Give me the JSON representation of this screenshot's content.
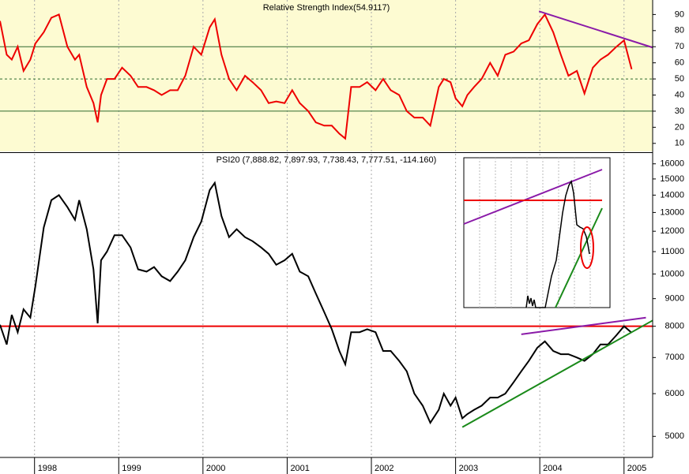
{
  "chart_data": [
    {
      "type": "line",
      "title": "Relative Strength Index(54.9117)",
      "color": "#ee0000",
      "background": "#fdfbd2",
      "x": [
        1997.59,
        1997.67,
        1997.73,
        1997.8,
        1997.87,
        1997.95,
        1998.01,
        1998.11,
        1998.2,
        1998.29,
        1998.39,
        1998.48,
        1998.53,
        1998.62,
        1998.7,
        1998.75,
        1998.79,
        1998.86,
        1998.95,
        1999.04,
        1999.14,
        1999.23,
        1999.33,
        1999.42,
        1999.51,
        1999.61,
        1999.7,
        1999.79,
        1999.89,
        1999.98,
        2000.08,
        2000.14,
        2000.22,
        2000.31,
        2000.4,
        2000.5,
        2000.59,
        2000.69,
        2000.78,
        2000.87,
        2000.97,
        2001.06,
        2001.15,
        2001.25,
        2001.34,
        2001.44,
        2001.53,
        2001.62,
        2001.69,
        2001.76,
        2001.86,
        2001.95,
        2002.05,
        2002.14,
        2002.23,
        2002.33,
        2002.42,
        2002.51,
        2002.61,
        2002.7,
        2002.8,
        2002.86,
        2002.94,
        2003.0,
        2003.08,
        2003.14,
        2003.22,
        2003.31,
        2003.41,
        2003.5,
        2003.59,
        2003.69,
        2003.78,
        2003.87,
        2003.97,
        2004.06,
        2004.16,
        2004.25,
        2004.34,
        2004.44,
        2004.53,
        2004.63,
        2004.72,
        2004.81,
        2004.91,
        2005.0,
        2005.09
      ],
      "values": [
        86,
        65,
        62,
        70,
        55,
        62,
        72,
        79,
        88,
        90,
        70,
        62,
        65,
        45,
        35,
        23,
        40,
        50,
        50,
        57,
        52,
        45,
        45,
        43,
        40,
        43,
        43,
        52,
        70,
        65,
        82,
        87,
        65,
        50,
        43,
        52,
        48,
        43,
        35,
        36,
        35,
        43,
        35,
        30,
        23,
        21,
        21,
        16,
        13,
        45,
        45,
        48,
        43,
        50,
        43,
        40,
        30,
        26,
        26,
        21,
        45,
        50,
        48,
        38,
        33,
        40,
        45,
        50,
        60,
        52,
        65,
        67,
        72,
        74,
        84,
        90,
        79,
        65,
        52,
        55,
        41,
        57,
        62,
        65,
        70,
        74,
        56
      ],
      "xlim": [
        1997.59,
        2005.34
      ],
      "xticks": [
        1998,
        1999,
        2000,
        2001,
        2002,
        2003,
        2004,
        2005
      ],
      "ylim": [
        5,
        99
      ],
      "yticks": [
        10,
        20,
        30,
        40,
        50,
        60,
        70,
        80,
        90
      ],
      "hlines": [
        {
          "value": 70,
          "color": "#2e6b2e",
          "style": "solid"
        },
        {
          "value": 50,
          "color": "#2e6b2e",
          "style": "dashed"
        },
        {
          "value": 30,
          "color": "#2e6b2e",
          "style": "solid"
        }
      ],
      "trendlines": [
        {
          "color": "#8a1aa8",
          "x": [
            2003.99,
            2005.34
          ],
          "values": [
            92,
            69.5
          ]
        }
      ]
    },
    {
      "type": "line",
      "title": "PSI20 (7,888.82, 7,897.93, 7,738.43, 7,777.51, -114.160)",
      "color": "#000000",
      "background": "#ffffff",
      "log": true,
      "x": [
        1997.59,
        1997.67,
        1997.73,
        1997.8,
        1997.87,
        1997.95,
        1998.01,
        1998.11,
        1998.2,
        1998.29,
        1998.39,
        1998.48,
        1998.53,
        1998.62,
        1998.7,
        1998.75,
        1998.79,
        1998.86,
        1998.95,
        1999.04,
        1999.14,
        1999.23,
        1999.33,
        1999.42,
        1999.51,
        1999.61,
        1999.7,
        1999.79,
        1999.89,
        1999.98,
        2000.08,
        2000.14,
        2000.22,
        2000.31,
        2000.4,
        2000.5,
        2000.59,
        2000.69,
        2000.78,
        2000.87,
        2000.97,
        2001.06,
        2001.15,
        2001.25,
        2001.34,
        2001.44,
        2001.53,
        2001.62,
        2001.69,
        2001.76,
        2001.86,
        2001.95,
        2002.05,
        2002.14,
        2002.23,
        2002.33,
        2002.42,
        2002.51,
        2002.61,
        2002.7,
        2002.8,
        2002.86,
        2002.94,
        2003.0,
        2003.08,
        2003.14,
        2003.22,
        2003.31,
        2003.41,
        2003.5,
        2003.59,
        2003.69,
        2003.78,
        2003.87,
        2003.97,
        2004.06,
        2004.16,
        2004.25,
        2004.34,
        2004.44,
        2004.53,
        2004.63,
        2004.72,
        2004.81,
        2004.91,
        2005.0,
        2005.09
      ],
      "values": [
        8050,
        7400,
        8400,
        7800,
        8600,
        8300,
        9500,
        12200,
        13700,
        14000,
        13300,
        12600,
        13700,
        12100,
        10200,
        8100,
        10600,
        11000,
        11800,
        11800,
        11200,
        10200,
        10100,
        10300,
        9900,
        9700,
        10100,
        10600,
        11700,
        12500,
        14300,
        14750,
        12800,
        11700,
        12100,
        11700,
        11500,
        11200,
        10900,
        10400,
        10600,
        10900,
        10100,
        9900,
        9200,
        8500,
        7900,
        7200,
        6800,
        7800,
        7800,
        7900,
        7800,
        7200,
        7200,
        6900,
        6600,
        6000,
        5700,
        5300,
        5600,
        6000,
        5700,
        5900,
        5400,
        5500,
        5600,
        5700,
        5900,
        5900,
        6000,
        6300,
        6600,
        6900,
        7300,
        7500,
        7200,
        7100,
        7100,
        7000,
        6900,
        7100,
        7400,
        7400,
        7700,
        8000,
        7780
      ],
      "xlim": [
        1997.59,
        2005.34
      ],
      "xticks": [
        1998,
        1999,
        2000,
        2001,
        2002,
        2003,
        2004,
        2005
      ],
      "ylim": [
        4570,
        16700
      ],
      "yticks": [
        5000,
        6000,
        7000,
        8000,
        9000,
        10000,
        11000,
        12000,
        13000,
        14000,
        15000,
        16000
      ],
      "hlines": [
        {
          "value": 8000,
          "color": "#ee0000",
          "style": "solid"
        }
      ],
      "trendlines": [
        {
          "color": "#1a8a1a",
          "x": [
            2003.08,
            2005.34
          ],
          "values": [
            5200,
            8200
          ]
        },
        {
          "color": "#8a1aa8",
          "x": [
            2003.78,
            2005.26
          ],
          "values": [
            7730,
            8300
          ]
        }
      ]
    }
  ]
}
